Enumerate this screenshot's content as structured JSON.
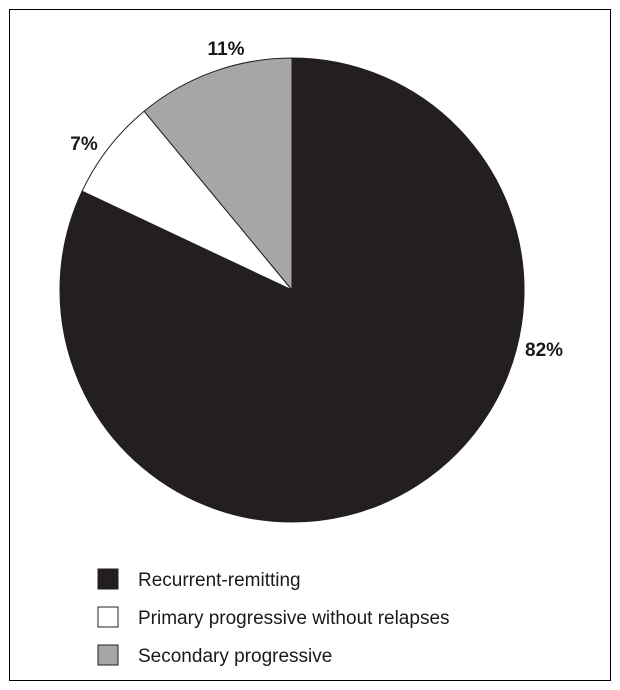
{
  "chart_data": {
    "type": "pie",
    "categories": [
      "Recurrent-remitting",
      "Primary progressive without relapses",
      "Secondary progressive"
    ],
    "values": [
      82,
      7,
      11
    ],
    "labels": [
      "82%",
      "7%",
      "11%"
    ],
    "colors": [
      "#231f20",
      "#ffffff",
      "#a6a6a6"
    ],
    "legend_position": "bottom-left",
    "title": ""
  }
}
